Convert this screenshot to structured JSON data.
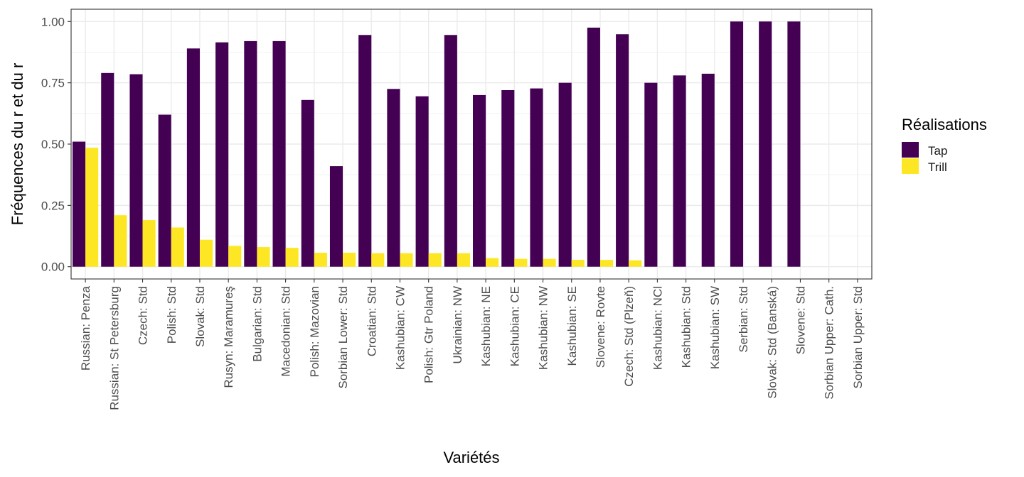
{
  "chart_data": {
    "type": "bar",
    "xlabel": "Variétés",
    "ylabel": "Fréquences du r et du r",
    "ylim": [
      -0.05,
      1.05
    ],
    "yticks": [
      "0.00",
      "0.25",
      "0.50",
      "0.75",
      "1.00"
    ],
    "grid": true,
    "legend_title": "Réalisations",
    "legend_position": "right",
    "categories": [
      "Russian: Penza",
      "Russian: St Petersburg",
      "Czech: Std",
      "Polish: Std",
      "Slovak: Std",
      "Rusyn: Maramureş",
      "Bulgarian: Std",
      "Macedonian: Std",
      "Polish: Mazovian",
      "Sorbian Lower: Std",
      "Croatian: Std",
      "Kashubian: CW",
      "Polish: Gtr Poland",
      "Ukrainian: NW",
      "Kashubian: NE",
      "Kashubian: CE",
      "Kashubian: NW",
      "Kashubian: SE",
      "Slovene: Rovte",
      "Czech: Std (Plzeň)",
      "Kashubian: NCl",
      "Kashubian: Std",
      "Kashubian: SW",
      "Serbian: Std",
      "Slovak: Std (Banská)",
      "Slovene: Std",
      "Sorbian Upper: Cath.",
      "Sorbian Upper: Std"
    ],
    "series": [
      {
        "name": "Tap",
        "color": "#440154",
        "values": [
          0.51,
          0.79,
          0.785,
          0.62,
          0.89,
          0.915,
          0.92,
          0.92,
          0.68,
          0.41,
          0.945,
          0.725,
          0.695,
          0.945,
          0.7,
          0.72,
          0.727,
          0.75,
          0.975,
          0.948,
          0.75,
          0.78,
          0.787,
          1.0,
          1.0,
          1.0,
          null,
          null
        ]
      },
      {
        "name": "Trill",
        "color": "#fde725",
        "values": [
          0.485,
          0.21,
          0.19,
          0.16,
          0.11,
          0.085,
          0.08,
          0.077,
          0.057,
          0.057,
          0.055,
          0.055,
          0.055,
          0.055,
          0.035,
          0.032,
          0.032,
          0.028,
          0.028,
          0.026,
          null,
          null,
          null,
          null,
          null,
          null,
          null,
          null
        ]
      }
    ]
  }
}
